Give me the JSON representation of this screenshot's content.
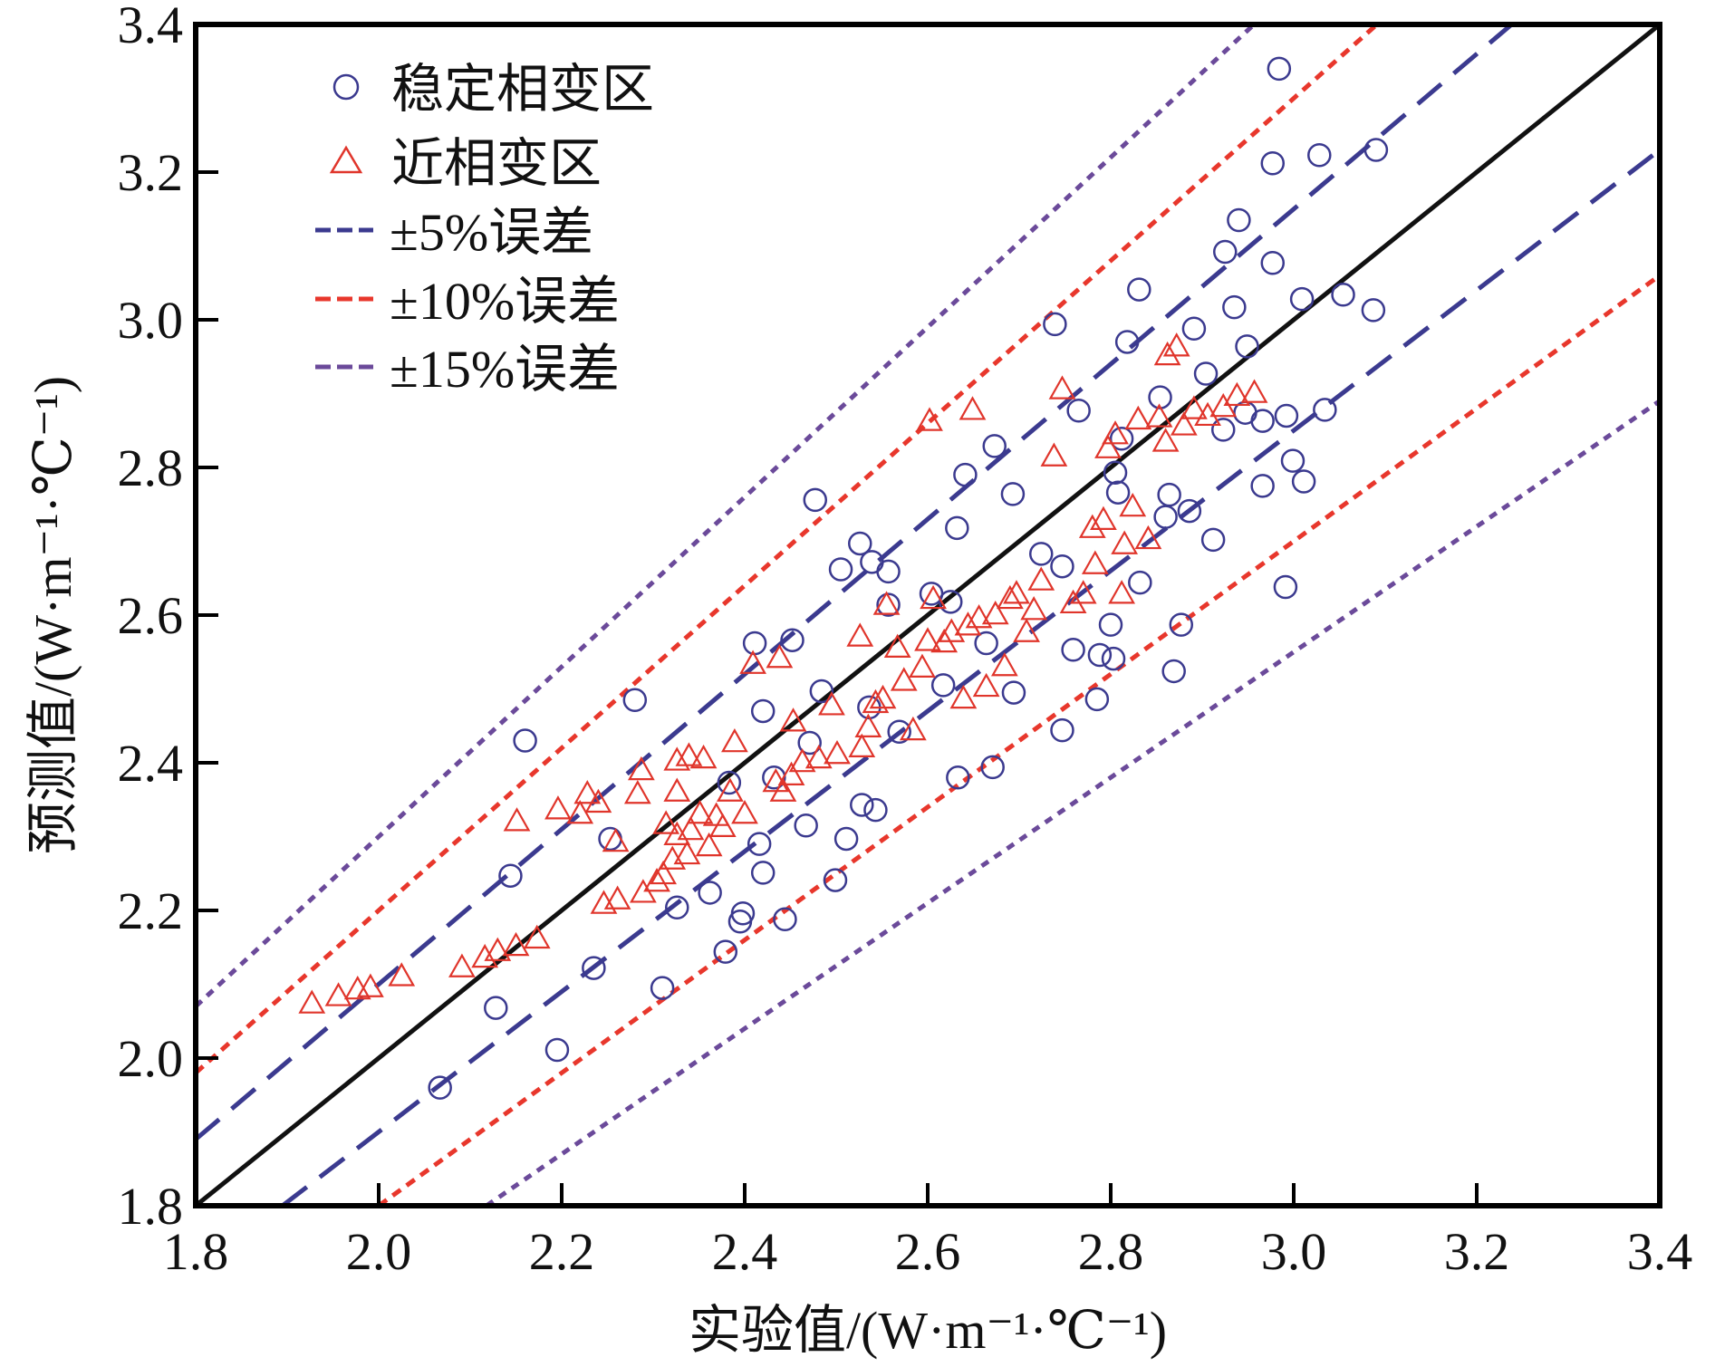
{
  "chart_data": {
    "type": "scatter",
    "title": "",
    "xlabel": "实验值/(W·m⁻¹·℃⁻¹)",
    "ylabel": "预测值/(W·m⁻¹·℃⁻¹)",
    "xlim": [
      1.8,
      3.4
    ],
    "ylim": [
      1.8,
      3.4
    ],
    "xticks": [
      "1.8",
      "2.0",
      "2.2",
      "2.4",
      "2.6",
      "2.8",
      "3.0",
      "3.2",
      "3.4"
    ],
    "yticks": [
      "1.8",
      "2.0",
      "2.2",
      "2.4",
      "2.6",
      "2.8",
      "3.0",
      "3.2",
      "3.4"
    ],
    "grid": false,
    "legend_position": "top-left",
    "colors": {
      "stable": "#3b3a8f",
      "near": "#e0352b",
      "err5": "#3b3a8f",
      "err10": "#e8372c",
      "err15": "#6b4a9a",
      "ideal": "#111111"
    },
    "series": [
      {
        "name": "稳定相变区",
        "marker": "circle",
        "points": [
          [
            2.067,
            1.96
          ],
          [
            2.128,
            2.068
          ],
          [
            2.195,
            2.011
          ],
          [
            2.31,
            2.095
          ],
          [
            2.235,
            2.122
          ],
          [
            2.144,
            2.247
          ],
          [
            2.16,
            2.43
          ],
          [
            2.28,
            2.485
          ],
          [
            2.253,
            2.297
          ],
          [
            2.326,
            2.204
          ],
          [
            2.362,
            2.224
          ],
          [
            2.379,
            2.144
          ],
          [
            2.395,
            2.185
          ],
          [
            2.398,
            2.196
          ],
          [
            2.383,
            2.373
          ],
          [
            2.411,
            2.562
          ],
          [
            2.42,
            2.47
          ],
          [
            2.452,
            2.566
          ],
          [
            2.42,
            2.251
          ],
          [
            2.416,
            2.29
          ],
          [
            2.432,
            2.38
          ],
          [
            2.444,
            2.188
          ],
          [
            2.467,
            2.315
          ],
          [
            2.471,
            2.427
          ],
          [
            2.477,
            2.756
          ],
          [
            2.484,
            2.497
          ],
          [
            2.499,
            2.241
          ],
          [
            2.511,
            2.297
          ],
          [
            2.505,
            2.662
          ],
          [
            2.526,
            2.697
          ],
          [
            2.539,
            2.672
          ],
          [
            2.528,
            2.343
          ],
          [
            2.543,
            2.336
          ],
          [
            2.536,
            2.475
          ],
          [
            2.557,
            2.659
          ],
          [
            2.557,
            2.614
          ],
          [
            2.569,
            2.442
          ],
          [
            2.604,
            2.629
          ],
          [
            2.617,
            2.505
          ],
          [
            2.625,
            2.618
          ],
          [
            2.632,
            2.718
          ],
          [
            2.633,
            2.38
          ],
          [
            2.641,
            2.79
          ],
          [
            2.664,
            2.562
          ],
          [
            2.671,
            2.394
          ],
          [
            2.673,
            2.829
          ],
          [
            2.693,
            2.764
          ],
          [
            2.694,
            2.495
          ],
          [
            2.724,
            2.683
          ],
          [
            2.739,
            2.994
          ],
          [
            2.747,
            2.666
          ],
          [
            2.747,
            2.444
          ],
          [
            2.765,
            2.877
          ],
          [
            2.759,
            2.553
          ],
          [
            2.785,
            2.486
          ],
          [
            2.788,
            2.546
          ],
          [
            2.8,
            2.587
          ],
          [
            2.803,
            2.541
          ],
          [
            2.805,
            2.793
          ],
          [
            2.808,
            2.766
          ],
          [
            2.812,
            2.839
          ],
          [
            2.818,
            2.97
          ],
          [
            2.831,
            3.041
          ],
          [
            2.832,
            2.644
          ],
          [
            2.854,
            2.895
          ],
          [
            2.86,
            2.733
          ],
          [
            2.864,
            2.763
          ],
          [
            2.869,
            2.524
          ],
          [
            2.877,
            2.587
          ],
          [
            2.886,
            2.741
          ],
          [
            2.891,
            2.988
          ],
          [
            2.904,
            2.927
          ],
          [
            2.912,
            2.702
          ],
          [
            2.923,
            2.851
          ],
          [
            2.925,
            3.092
          ],
          [
            2.935,
            3.017
          ],
          [
            2.94,
            3.135
          ],
          [
            2.949,
            2.964
          ],
          [
            2.947,
            2.874
          ],
          [
            2.966,
            2.775
          ],
          [
            2.966,
            2.863
          ],
          [
            2.977,
            3.077
          ],
          [
            2.977,
            3.212
          ],
          [
            2.984,
            3.34
          ],
          [
            2.992,
            2.87
          ],
          [
            2.991,
            2.638
          ],
          [
            2.999,
            2.809
          ],
          [
            3.009,
            3.028
          ],
          [
            3.011,
            2.781
          ],
          [
            3.028,
            3.223
          ],
          [
            3.034,
            2.878
          ],
          [
            3.054,
            3.034
          ],
          [
            3.087,
            3.013
          ],
          [
            3.09,
            3.23
          ]
        ]
      },
      {
        "name": "近相变区",
        "marker": "triangle",
        "points": [
          [
            1.927,
            2.074
          ],
          [
            1.956,
            2.084
          ],
          [
            1.977,
            2.093
          ],
          [
            1.991,
            2.096
          ],
          [
            2.025,
            2.111
          ],
          [
            2.091,
            2.123
          ],
          [
            2.116,
            2.136
          ],
          [
            2.13,
            2.145
          ],
          [
            2.15,
            2.152
          ],
          [
            2.173,
            2.162
          ],
          [
            2.151,
            2.321
          ],
          [
            2.196,
            2.337
          ],
          [
            2.22,
            2.331
          ],
          [
            2.228,
            2.358
          ],
          [
            2.24,
            2.346
          ],
          [
            2.246,
            2.209
          ],
          [
            2.261,
            2.215
          ],
          [
            2.259,
            2.293
          ],
          [
            2.283,
            2.358
          ],
          [
            2.287,
            2.39
          ],
          [
            2.289,
            2.224
          ],
          [
            2.304,
            2.239
          ],
          [
            2.311,
            2.249
          ],
          [
            2.314,
            2.317
          ],
          [
            2.321,
            2.269
          ],
          [
            2.326,
            2.302
          ],
          [
            2.326,
            2.361
          ],
          [
            2.326,
            2.403
          ],
          [
            2.337,
            2.276
          ],
          [
            2.341,
            2.309
          ],
          [
            2.339,
            2.409
          ],
          [
            2.351,
            2.331
          ],
          [
            2.355,
            2.406
          ],
          [
            2.361,
            2.287
          ],
          [
            2.369,
            2.328
          ],
          [
            2.376,
            2.313
          ],
          [
            2.384,
            2.361
          ],
          [
            2.389,
            2.428
          ],
          [
            2.4,
            2.331
          ],
          [
            2.409,
            2.534
          ],
          [
            2.434,
            2.374
          ],
          [
            2.438,
            2.542
          ],
          [
            2.442,
            2.361
          ],
          [
            2.451,
            2.383
          ],
          [
            2.453,
            2.456
          ],
          [
            2.463,
            2.401
          ],
          [
            2.481,
            2.406
          ],
          [
            2.495,
            2.478
          ],
          [
            2.501,
            2.412
          ],
          [
            2.526,
            2.571
          ],
          [
            2.528,
            2.421
          ],
          [
            2.535,
            2.448
          ],
          [
            2.543,
            2.481
          ],
          [
            2.551,
            2.487
          ],
          [
            2.555,
            2.614
          ],
          [
            2.567,
            2.556
          ],
          [
            2.574,
            2.511
          ],
          [
            2.584,
            2.444
          ],
          [
            2.594,
            2.529
          ],
          [
            2.6,
            2.565
          ],
          [
            2.602,
            2.863
          ],
          [
            2.606,
            2.622
          ],
          [
            2.618,
            2.563
          ],
          [
            2.626,
            2.577
          ],
          [
            2.639,
            2.487
          ],
          [
            2.644,
            2.586
          ],
          [
            2.649,
            2.878
          ],
          [
            2.656,
            2.596
          ],
          [
            2.664,
            2.503
          ],
          [
            2.674,
            2.601
          ],
          [
            2.684,
            2.531
          ],
          [
            2.69,
            2.622
          ],
          [
            2.697,
            2.629
          ],
          [
            2.708,
            2.577
          ],
          [
            2.716,
            2.607
          ],
          [
            2.724,
            2.647
          ],
          [
            2.738,
            2.815
          ],
          [
            2.747,
            2.906
          ],
          [
            2.759,
            2.616
          ],
          [
            2.77,
            2.629
          ],
          [
            2.78,
            2.718
          ],
          [
            2.783,
            2.669
          ],
          [
            2.792,
            2.729
          ],
          [
            2.797,
            2.826
          ],
          [
            2.805,
            2.845
          ],
          [
            2.812,
            2.629
          ],
          [
            2.815,
            2.696
          ],
          [
            2.824,
            2.747
          ],
          [
            2.83,
            2.865
          ],
          [
            2.841,
            2.703
          ],
          [
            2.853,
            2.868
          ],
          [
            2.86,
            2.835
          ],
          [
            2.862,
            2.952
          ],
          [
            2.872,
            2.964
          ],
          [
            2.88,
            2.857
          ],
          [
            2.891,
            2.879
          ],
          [
            2.906,
            2.87
          ],
          [
            2.923,
            2.882
          ],
          [
            2.938,
            2.897
          ],
          [
            2.957,
            2.901
          ]
        ]
      }
    ],
    "reference_lines": [
      {
        "name": "ideal",
        "slope": 1.0,
        "style": "solid"
      },
      {
        "name": "±5%误差",
        "slopes": [
          1.05,
          0.95
        ],
        "style": "long-dash"
      },
      {
        "name": "±10%误差",
        "slopes": [
          1.1,
          0.9
        ],
        "style": "short-dash"
      },
      {
        "name": "±15%误差",
        "slopes": [
          1.15,
          0.85
        ],
        "style": "short-dash"
      }
    ],
    "legend": [
      "稳定相变区",
      "近相变区",
      "±5%误差",
      "±10%误差",
      "±15%误差"
    ]
  }
}
